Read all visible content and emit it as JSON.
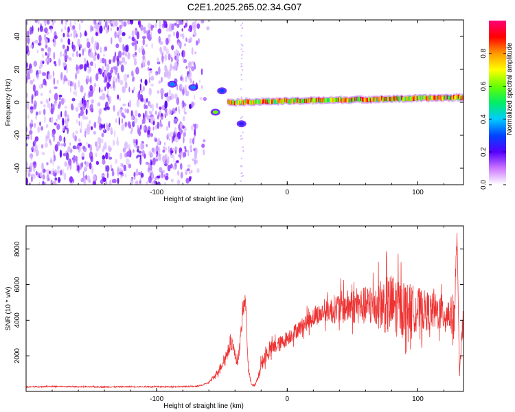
{
  "title": "C2E1.2025.265.02.34.G07",
  "chart_data": [
    {
      "type": "heatmap",
      "title": "C2E1.2025.265.02.34.G07",
      "xlabel": "Height of straight line (km)",
      "ylabel": "Frequency (Hz)",
      "xlim": [
        -200,
        135
      ],
      "ylim": [
        -50,
        50
      ],
      "x_ticks": [
        -100,
        0,
        100
      ],
      "y_ticks": [
        -40,
        -20,
        0,
        20,
        40
      ],
      "grid": false,
      "colorbar": {
        "label": "Normalized spectral amplitude",
        "range": [
          0,
          1
        ],
        "ticks": [
          0.0,
          0.2,
          0.4,
          0.6,
          0.8
        ],
        "colors": [
          "#ffffff",
          "#cc77ff",
          "#5500ff",
          "#0044ff",
          "#00ccff",
          "#00ee66",
          "#66ff00",
          "#ffff00",
          "#ff9900",
          "#ff0000",
          "#ff0077"
        ]
      },
      "features": [
        {
          "name": "noise region",
          "x_range": [
            -200,
            -60
          ],
          "freq_range": [
            -50,
            50
          ],
          "amplitude": 0.05
        },
        {
          "name": "early signal",
          "x": -88,
          "freq": 11,
          "amplitude": 0.35
        },
        {
          "name": "early signal",
          "x": -72,
          "freq": 9,
          "amplitude": 0.35
        },
        {
          "name": "early signal",
          "x": -50,
          "freq": 7,
          "amplitude": 0.3
        },
        {
          "name": "low trace",
          "x": -55,
          "freq": -6,
          "amplitude": 0.6
        },
        {
          "name": "low trace",
          "x": -35,
          "freq": -13,
          "amplitude": 0.25
        },
        {
          "name": "signal line",
          "x_range": [
            -45,
            135
          ],
          "freq_start": 0,
          "freq_end": 3,
          "amplitude": 0.8
        }
      ]
    },
    {
      "type": "line",
      "xlabel": "Height of straight line (km)",
      "ylabel": "SNR (10 * v/v)",
      "xlim": [
        -200,
        135
      ],
      "ylim": [
        0,
        9300
      ],
      "x_ticks": [
        -100,
        0,
        100
      ],
      "y_ticks": [
        2000,
        4000,
        6000,
        8000
      ],
      "grid": false,
      "color": "#ee3333",
      "series": [
        {
          "x": [
            -200,
            -180,
            -160,
            -140,
            -120,
            -100,
            -80,
            -70,
            -65,
            -60,
            -55,
            -50,
            -45,
            -42,
            -40,
            -38,
            -36,
            -34,
            -32,
            -30,
            -28,
            -25,
            -22,
            -20,
            -15,
            -10,
            -5,
            0,
            10,
            20,
            30,
            40,
            50,
            60,
            70,
            80,
            90,
            100,
            110,
            120,
            125,
            128,
            130,
            132,
            135
          ],
          "values": [
            250,
            280,
            260,
            250,
            260,
            260,
            270,
            280,
            350,
            500,
            900,
            1500,
            2300,
            2800,
            2000,
            1600,
            2800,
            4500,
            5200,
            1500,
            500,
            300,
            800,
            1500,
            2200,
            2500,
            2700,
            3000,
            3600,
            4200,
            4500,
            4700,
            4800,
            4800,
            4900,
            4800,
            4700,
            4600,
            4500,
            4400,
            4300,
            4200,
            8800,
            1000,
            4300
          ],
          "envelope": [
            250,
            280,
            260,
            250,
            260,
            260,
            270,
            280,
            350,
            600,
            1200,
            2000,
            3000,
            3500,
            2600,
            2000,
            3500,
            5600,
            6000,
            2000,
            700,
            400,
            1200,
            2200,
            3000,
            3300,
            3500,
            3800,
            4400,
            5200,
            5600,
            6400,
            6600,
            6800,
            7400,
            8200,
            7400,
            6900,
            6400,
            6300,
            6100,
            6800,
            9300,
            1500,
            6000
          ]
        }
      ]
    }
  ]
}
